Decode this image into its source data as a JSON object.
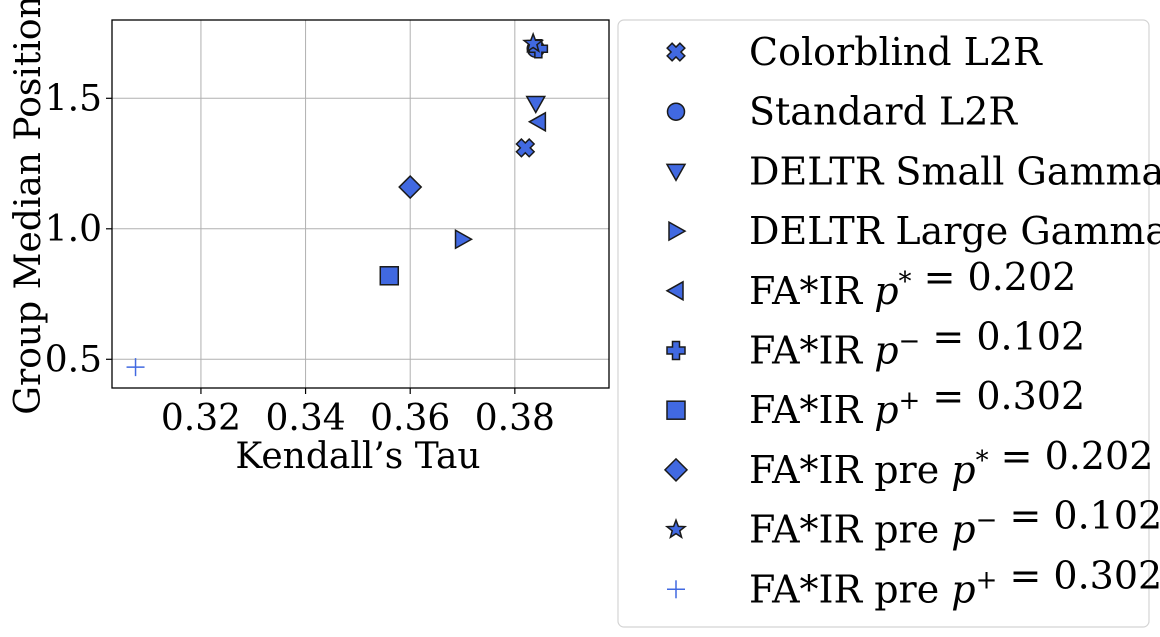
{
  "chart_data": {
    "type": "scatter",
    "title": "",
    "xlabel": "Kendall’s Tau",
    "ylabel": "Group Median Position",
    "xlim": [
      0.303,
      0.398
    ],
    "ylim": [
      0.39,
      1.8
    ],
    "xticks": [
      0.32,
      0.34,
      0.36,
      0.38
    ],
    "yticks": [
      0.5,
      1.0,
      1.5
    ],
    "xtick_labels": [
      "0.32",
      "0.34",
      "0.36",
      "0.38"
    ],
    "ytick_labels": [
      "0.5",
      "1.0",
      "1.5"
    ],
    "grid": true,
    "legend_position": "outside-right",
    "marker_color": "#4169e1",
    "edge_color": "#1a1a1a",
    "series": [
      {
        "name": "Colorblind L2R",
        "marker": "x-filled",
        "x": [
          0.382
        ],
        "y": [
          1.31
        ],
        "legend_parts": [
          {
            "t": "Colorblind L2R",
            "i": false
          }
        ]
      },
      {
        "name": "Standard L2R",
        "marker": "circle",
        "x": [
          0.384
        ],
        "y": [
          1.69
        ],
        "legend_parts": [
          {
            "t": "Standard L2R",
            "i": false
          }
        ]
      },
      {
        "name": "DELTR Small Gamma",
        "marker": "triangle-down",
        "x": [
          0.384
        ],
        "y": [
          1.48
        ],
        "legend_parts": [
          {
            "t": "DELTR Small Gamma",
            "i": false
          }
        ]
      },
      {
        "name": "DELTR Large Gamma",
        "marker": "triangle-right",
        "x": [
          0.37
        ],
        "y": [
          0.96
        ],
        "legend_parts": [
          {
            "t": "DELTR Large Gamma",
            "i": false
          }
        ]
      },
      {
        "name": "FA*IR p* = 0.202",
        "marker": "triangle-left",
        "x": [
          0.3845
        ],
        "y": [
          1.41
        ],
        "legend_parts": [
          {
            "t": "FA*IR ",
            "i": false
          },
          {
            "t": "p",
            "i": true
          },
          {
            "t": "*",
            "i": false,
            "sup": true
          },
          {
            "t": " = 0.202",
            "i": false
          }
        ]
      },
      {
        "name": "FA*IR p− = 0.102",
        "marker": "plus-filled",
        "x": [
          0.3845
        ],
        "y": [
          1.69
        ],
        "legend_parts": [
          {
            "t": "FA*IR ",
            "i": false
          },
          {
            "t": "p",
            "i": true
          },
          {
            "t": "−",
            "i": false,
            "sup": true
          },
          {
            "t": " = 0.102",
            "i": false
          }
        ]
      },
      {
        "name": "FA*IR p+ = 0.302",
        "marker": "square",
        "x": [
          0.356
        ],
        "y": [
          0.82
        ],
        "legend_parts": [
          {
            "t": "FA*IR ",
            "i": false
          },
          {
            "t": "p",
            "i": true
          },
          {
            "t": "+",
            "i": false,
            "sup": true
          },
          {
            "t": " = 0.302",
            "i": false
          }
        ]
      },
      {
        "name": "FA*IR pre p* = 0.202",
        "marker": "diamond",
        "x": [
          0.36
        ],
        "y": [
          1.16
        ],
        "legend_parts": [
          {
            "t": "FA*IR pre ",
            "i": false
          },
          {
            "t": "p",
            "i": true
          },
          {
            "t": "*",
            "i": false,
            "sup": true
          },
          {
            "t": " = 0.202",
            "i": false
          }
        ]
      },
      {
        "name": "FA*IR pre p− = 0.102",
        "marker": "star",
        "x": [
          0.3835
        ],
        "y": [
          1.71
        ],
        "legend_parts": [
          {
            "t": "FA*IR pre ",
            "i": false
          },
          {
            "t": "p",
            "i": true
          },
          {
            "t": "−",
            "i": false,
            "sup": true
          },
          {
            "t": " = 0.102",
            "i": false
          }
        ]
      },
      {
        "name": "FA*IR pre p+ = 0.302",
        "marker": "plus-thin",
        "x": [
          0.3075
        ],
        "y": [
          0.47
        ],
        "legend_parts": [
          {
            "t": "FA*IR pre ",
            "i": false
          },
          {
            "t": "p",
            "i": true
          },
          {
            "t": "+",
            "i": false,
            "sup": true
          },
          {
            "t": " = 0.302",
            "i": false
          }
        ]
      }
    ]
  }
}
